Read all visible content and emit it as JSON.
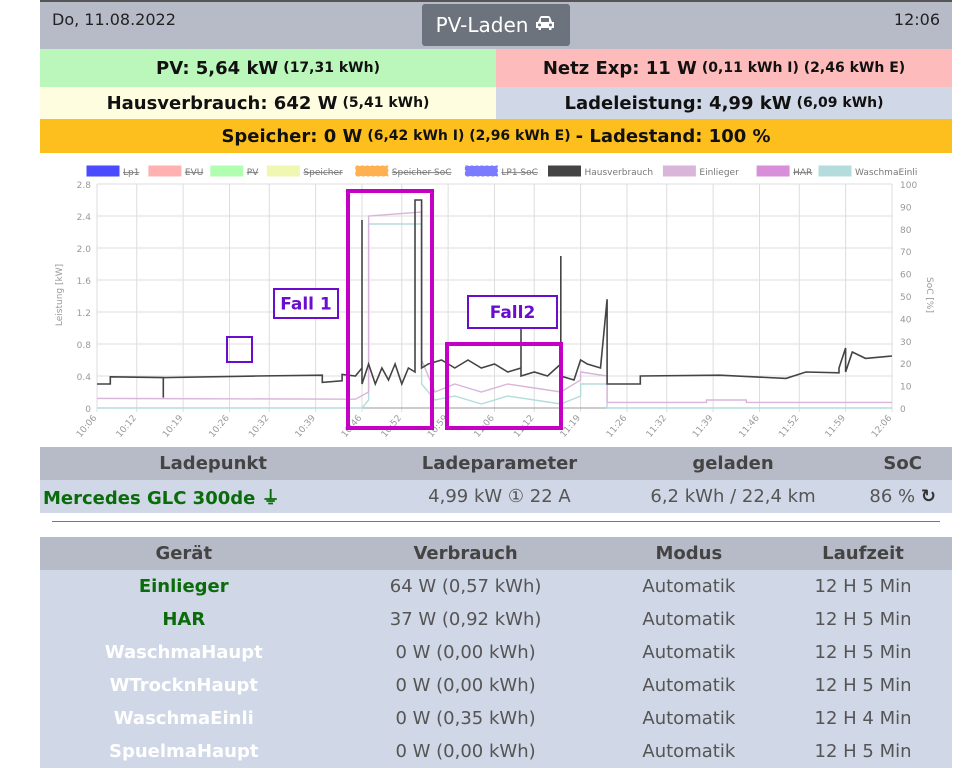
{
  "header": {
    "date": "Do, 11.08.2022",
    "mode_button": "PV-Laden",
    "time": "12:06"
  },
  "summary": {
    "pv": {
      "label": "PV: 5,64 kW",
      "detail": "(17,31 kWh)",
      "color": "#bbf7bb"
    },
    "netz": {
      "label": "Netz Exp: 11 W",
      "detail": "(0,11 kWh I) (2,46 kWh E)",
      "color": "#fdbbbb"
    },
    "haus": {
      "label": "Hausverbrauch: 642 W",
      "detail": "(5,41 kWh)",
      "color": "#fefde0"
    },
    "lade": {
      "label": "Ladeleistung: 4,99 kW",
      "detail": "(6,09 kWh)",
      "color": "#d0d7e6"
    },
    "speicher": {
      "label": "Speicher: 0 W",
      "detail": "(6,42 kWh I) (2,96 kWh E)",
      "suffix": "- Ladestand: 100 %",
      "color": "#fcbf1e"
    }
  },
  "chart_data": {
    "type": "line",
    "ylabel": "Leistung [kW]",
    "y2label": "SoC [%]",
    "ylim": [
      0,
      2.8
    ],
    "y2lim": [
      0,
      100
    ],
    "yticks": [
      "0",
      "0.4",
      "0.8",
      "1.2",
      "1.6",
      "2.0",
      "2.4",
      "2.8"
    ],
    "y2ticks": [
      "0",
      "10",
      "20",
      "30",
      "40",
      "50",
      "60",
      "70",
      "80",
      "90",
      "100"
    ],
    "xticks": [
      "10:06",
      "10:12",
      "10:19",
      "10:26",
      "10:32",
      "10:39",
      "10:46",
      "10:52",
      "10:59",
      "11:06",
      "11:12",
      "11:19",
      "11:26",
      "11:32",
      "11:39",
      "11:46",
      "11:52",
      "11:59",
      "12:06"
    ],
    "grid": true,
    "legend_position": "top",
    "legend": [
      {
        "name": "Lp1",
        "color": "#4a4aff",
        "hidden": true
      },
      {
        "name": "EVU",
        "color": "#ffb0b0",
        "hidden": true
      },
      {
        "name": "PV",
        "color": "#b0ffb0",
        "hidden": true
      },
      {
        "name": "Speicher",
        "color": "#f0f7b0",
        "hidden": true
      },
      {
        "name": "Speicher SoC",
        "color": "#ffb050",
        "hidden": true
      },
      {
        "name": "LP1 SoC",
        "color": "#7b7bff",
        "hidden": true
      },
      {
        "name": "Hausverbrauch",
        "color": "#444444",
        "hidden": false
      },
      {
        "name": "Einlieger",
        "color": "#dab5da",
        "hidden": false
      },
      {
        "name": "HAR",
        "color": "#d88ed8",
        "hidden": true
      },
      {
        "name": "WaschmaEinli",
        "color": "#b5dcdc",
        "hidden": false
      }
    ],
    "series": [
      {
        "name": "Hausverbrauch",
        "color": "#444444",
        "x": [
          "10:06",
          "10:08",
          "10:08",
          "10:16",
          "10:16",
          "10:16",
          "10:30",
          "10:40",
          "10:40",
          "10:43",
          "10:43",
          "10:45",
          "10:46",
          "10:46",
          "10:46",
          "10:47",
          "10:48",
          "10:49",
          "10:50",
          "10:51",
          "10:52",
          "10:53",
          "10:54",
          "10:54",
          "10:55",
          "10:55",
          "10:56",
          "10:58",
          "11:00",
          "11:02",
          "11:04",
          "11:06",
          "11:08",
          "11:10",
          "11:10",
          "11:10",
          "11:12",
          "11:14",
          "11:16",
          "11:16",
          "11:16",
          "11:18",
          "11:19",
          "11:20",
          "11:22",
          "11:23",
          "11:23",
          "11:23",
          "11:28",
          "11:28",
          "11:40",
          "11:50",
          "11:53",
          "11:58",
          "11:58",
          "11:59",
          "11:59",
          "12:00",
          "12:02",
          "12:06"
        ],
        "y": [
          0.3,
          0.3,
          0.39,
          0.38,
          0.13,
          0.38,
          0.4,
          0.41,
          0.32,
          0.34,
          0.42,
          0.4,
          0.5,
          2.35,
          0.3,
          0.55,
          0.3,
          0.5,
          0.35,
          0.55,
          0.3,
          0.5,
          0.45,
          2.6,
          2.6,
          0.5,
          0.55,
          0.6,
          0.5,
          0.6,
          0.5,
          0.55,
          0.45,
          0.5,
          1.1,
          0.4,
          0.45,
          0.4,
          0.55,
          1.9,
          0.4,
          0.35,
          0.6,
          0.55,
          0.5,
          1.36,
          0.3,
          0.3,
          0.3,
          0.4,
          0.41,
          0.37,
          0.45,
          0.44,
          0.5,
          0.75,
          0.45,
          0.7,
          0.62,
          0.65
        ]
      },
      {
        "name": "Einlieger",
        "color": "#dab5da",
        "x": [
          "10:06",
          "10:45",
          "10:47",
          "10:47",
          "10:55",
          "10:55",
          "10:57",
          "11:00",
          "11:04",
          "11:08",
          "11:12",
          "11:16",
          "11:19",
          "11:19",
          "11:23",
          "11:23",
          "11:38",
          "11:38",
          "11:44",
          "11:44",
          "12:06"
        ],
        "y": [
          0.12,
          0.11,
          0.2,
          2.4,
          2.45,
          0.6,
          0.2,
          0.3,
          0.2,
          0.3,
          0.25,
          0.2,
          0.35,
          0.45,
          0.4,
          0.07,
          0.07,
          0.1,
          0.1,
          0.07,
          0.07
        ]
      },
      {
        "name": "WaschmaEinli",
        "color": "#b5dcdc",
        "x": [
          "10:06",
          "10:46",
          "10:47",
          "10:47",
          "10:55",
          "10:55",
          "10:57",
          "11:00",
          "11:04",
          "11:08",
          "11:12",
          "11:16",
          "11:19",
          "11:19",
          "11:23",
          "11:23",
          "12:06"
        ],
        "y": [
          0,
          0,
          0.1,
          2.3,
          2.3,
          0.3,
          0.1,
          0.15,
          0.05,
          0.15,
          0.1,
          0.05,
          0.15,
          0.3,
          0.3,
          0,
          0
        ]
      }
    ],
    "annotations": [
      {
        "text": "Fall 1",
        "color": "#6a0dcc"
      },
      {
        "text": "Fall2",
        "color": "#6a0dcc"
      }
    ],
    "highlight_color": "#c400c4"
  },
  "ladepunkt": {
    "headers": [
      "Ladepunkt",
      "Ladeparameter",
      "geladen",
      "SoC"
    ],
    "row": {
      "name": "Mercedes GLC 300de",
      "params": "4,99 kW ① 22 A",
      "charged": "6,2 kWh / 22,4 km",
      "soc": "86 %"
    }
  },
  "devices": {
    "headers": [
      "Gerät",
      "Verbrauch",
      "Modus",
      "Laufzeit"
    ],
    "rows": [
      {
        "name": "Einlieger",
        "active": true,
        "usage": "64 W (0,57 kWh)",
        "mode": "Automatik",
        "runtime": "12 H 5 Min"
      },
      {
        "name": "HAR",
        "active": true,
        "usage": "37 W (0,92 kWh)",
        "mode": "Automatik",
        "runtime": "12 H 5 Min"
      },
      {
        "name": "WaschmaHaupt",
        "active": false,
        "usage": "0 W (0,00 kWh)",
        "mode": "Automatik",
        "runtime": "12 H 5 Min"
      },
      {
        "name": "WTrocknHaupt",
        "active": false,
        "usage": "0 W (0,00 kWh)",
        "mode": "Automatik",
        "runtime": "12 H 5 Min"
      },
      {
        "name": "WaschmaEinli",
        "active": false,
        "usage": "0 W (0,35 kWh)",
        "mode": "Automatik",
        "runtime": "12 H 4 Min"
      },
      {
        "name": "SpuelmaHaupt",
        "active": false,
        "usage": "0 W (0,00 kWh)",
        "mode": "Automatik",
        "runtime": "12 H 5 Min"
      }
    ]
  }
}
